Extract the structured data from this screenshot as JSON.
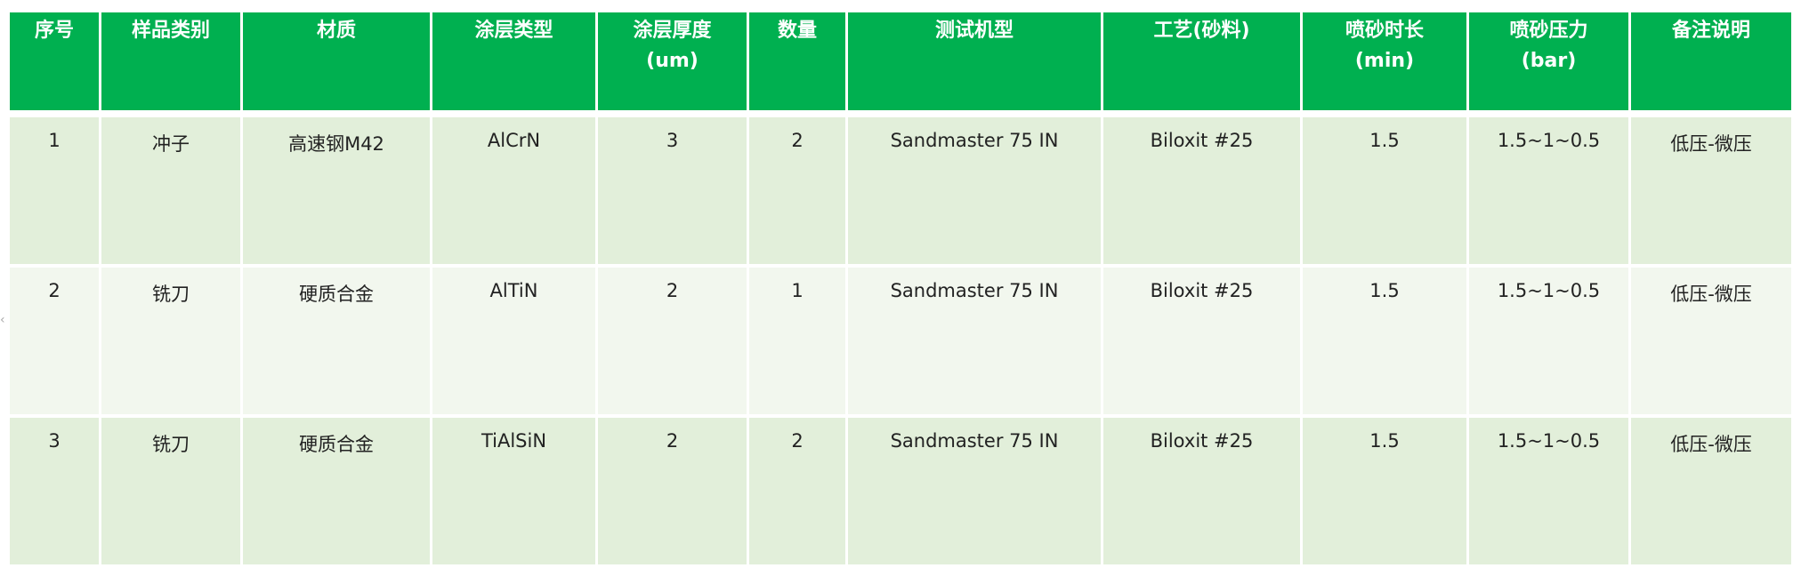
{
  "colors": {
    "header": "#00B050",
    "row_odd": "#E2EFDA",
    "row_even": "#F2F7EE"
  },
  "headers": [
    [
      "序号",
      ""
    ],
    [
      "样品类别",
      ""
    ],
    [
      "材质",
      ""
    ],
    [
      "涂层类型",
      ""
    ],
    [
      "涂层厚度",
      "(um)"
    ],
    [
      "数量",
      ""
    ],
    [
      "测试机型",
      ""
    ],
    [
      "工艺(砂料)",
      ""
    ],
    [
      "喷砂时长",
      "(min)"
    ],
    [
      "喷砂压力",
      "(bar)"
    ],
    [
      "备注说明",
      ""
    ]
  ],
  "rows": [
    [
      "1",
      "冲子",
      "高速钢M42",
      "AlCrN",
      "3",
      "2",
      "Sandmaster 75 IN",
      "Biloxit #25",
      "1.5",
      "1.5~1~0.5",
      "低压-微压"
    ],
    [
      "2",
      "铣刀",
      "硬质合金",
      "AlTiN",
      "2",
      "1",
      "Sandmaster 75 IN",
      "Biloxit #25",
      "1.5",
      "1.5~1~0.5",
      "低压-微压"
    ],
    [
      "3",
      "铣刀",
      "硬质合金",
      "TiAlSiN",
      "2",
      "2",
      "Sandmaster 75 IN",
      "Biloxit #25",
      "1.5",
      "1.5~1~0.5",
      "低压-微压"
    ]
  ]
}
